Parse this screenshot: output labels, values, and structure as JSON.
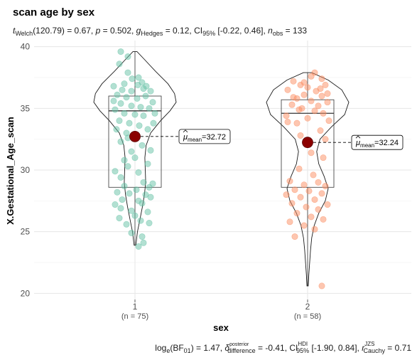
{
  "chart_data": {
    "type": "violin-box-scatter",
    "title": "scan age by sex",
    "subtitle": {
      "stat_symbol": "t",
      "stat_sub": "Welch",
      "stat_value": "(120.79) = 0.67, ",
      "p_label": "p",
      "p_value": " = 0.502, ",
      "es_symbol": "g",
      "es_sub": "Hedges",
      "es_value": " = 0.12, CI",
      "ci_sub": "95%",
      "ci_value": " [-0.22, 0.46], ",
      "n_symbol": "n",
      "n_sub": "obs",
      "n_value": " = 133"
    },
    "caption": {
      "log_text": "log",
      "log_sub": "e",
      "bf_text": "(BF",
      "bf_sub": "01",
      "bf_value": ") = 1.47, ",
      "delta_symbol": "δ",
      "delta_sup": "posterior",
      "delta_sub": "difference",
      "delta_value": " = -0.41, CI",
      "hdi_sup": "HDI",
      "hdi_sub": "95%",
      "hdi_value": " [-1.90, 0.84], ",
      "r_symbol": "r",
      "r_sup": "JZS",
      "r_sub": "Cauchy",
      "r_value": " = 0.71"
    },
    "xlabel": "sex",
    "ylabel": "X.Gestational_Age_scan",
    "ylim": [
      19.5,
      40.5
    ],
    "yticks": [
      20,
      25,
      30,
      35,
      40
    ],
    "grid": true,
    "groups": [
      {
        "category": "1",
        "n_label": "(n = 75)",
        "color": "#66c2a5",
        "mean": 32.72,
        "mean_label_mu": "μ",
        "mean_label_sub": "mean",
        "mean_label_value": "=32.72",
        "box": {
          "q1": 28.6,
          "median": 34.8,
          "q3": 36.0,
          "whisker_low": 23.9,
          "whisker_high": 39.6
        },
        "violin": [
          [
            23.9,
            0.02
          ],
          [
            25.0,
            0.06
          ],
          [
            26.0,
            0.12
          ],
          [
            27.0,
            0.18
          ],
          [
            28.0,
            0.23
          ],
          [
            29.0,
            0.26
          ],
          [
            30.0,
            0.25
          ],
          [
            31.0,
            0.24
          ],
          [
            32.0,
            0.27
          ],
          [
            33.0,
            0.38
          ],
          [
            34.0,
            0.62
          ],
          [
            34.8,
            0.85
          ],
          [
            35.5,
            1.0
          ],
          [
            36.2,
            0.96
          ],
          [
            37.0,
            0.8
          ],
          [
            38.0,
            0.5
          ],
          [
            39.0,
            0.22
          ],
          [
            39.6,
            0.05
          ]
        ],
        "points": [
          [
            -0.2,
            39.6
          ],
          [
            -0.1,
            39.2
          ],
          [
            -0.22,
            38.6
          ],
          [
            -0.1,
            37.9
          ],
          [
            0.05,
            37.5
          ],
          [
            -0.15,
            37.0
          ],
          [
            0.1,
            37.1
          ],
          [
            -0.3,
            36.8
          ],
          [
            -0.18,
            36.5
          ],
          [
            -0.05,
            36.4
          ],
          [
            0.12,
            36.6
          ],
          [
            0.22,
            36.4
          ],
          [
            -0.25,
            36.1
          ],
          [
            -0.12,
            35.9
          ],
          [
            0.03,
            35.8
          ],
          [
            0.15,
            36.0
          ],
          [
            0.25,
            35.5
          ],
          [
            -0.2,
            35.4
          ],
          [
            -0.05,
            35.2
          ],
          [
            0.08,
            35.1
          ],
          [
            0.2,
            35.0
          ],
          [
            -0.28,
            34.9
          ],
          [
            -0.15,
            34.6
          ],
          [
            0.0,
            34.5
          ],
          [
            0.12,
            34.4
          ],
          [
            -0.22,
            34.0
          ],
          [
            -0.08,
            33.8
          ],
          [
            0.06,
            33.6
          ],
          [
            0.18,
            33.3
          ],
          [
            -0.12,
            33.0
          ],
          [
            0.02,
            32.8
          ],
          [
            -0.2,
            32.3
          ],
          [
            0.1,
            32.0
          ],
          [
            -0.05,
            31.5
          ],
          [
            0.0,
            31.0
          ],
          [
            -0.1,
            30.3
          ],
          [
            0.05,
            29.8
          ],
          [
            -0.2,
            29.4
          ],
          [
            0.12,
            29.0
          ],
          [
            -0.15,
            28.7
          ],
          [
            0.2,
            28.6
          ],
          [
            0.25,
            28.9
          ],
          [
            0.02,
            28.4
          ],
          [
            -0.25,
            28.2
          ],
          [
            -0.08,
            28.1
          ],
          [
            0.15,
            28.0
          ],
          [
            0.22,
            27.8
          ],
          [
            -0.18,
            27.6
          ],
          [
            0.05,
            27.5
          ],
          [
            -0.28,
            27.2
          ],
          [
            0.1,
            27.3
          ],
          [
            -0.2,
            26.9
          ],
          [
            -0.05,
            26.7
          ],
          [
            0.18,
            26.6
          ],
          [
            0.0,
            26.3
          ],
          [
            -0.22,
            26.1
          ],
          [
            0.08,
            25.9
          ],
          [
            -0.12,
            25.6
          ],
          [
            0.2,
            25.7
          ],
          [
            -0.05,
            24.9
          ],
          [
            0.1,
            24.6
          ],
          [
            0.12,
            24.1
          ],
          [
            0.05,
            23.8
          ],
          [
            -0.15,
            30.8
          ],
          [
            0.22,
            31.6
          ],
          [
            -0.28,
            29.9
          ],
          [
            0.18,
            30.5
          ],
          [
            -0.1,
            32.6
          ],
          [
            0.26,
            33.8
          ],
          [
            -0.26,
            33.3
          ],
          [
            0.04,
            36.9
          ],
          [
            -0.04,
            37.4
          ],
          [
            0.16,
            36.8
          ],
          [
            -0.3,
            35.6
          ],
          [
            0.28,
            34.6
          ]
        ]
      },
      {
        "category": "2",
        "n_label": "(n = 58)",
        "color": "#fc8d62",
        "mean": 32.24,
        "mean_label_mu": "μ",
        "mean_label_sub": "mean",
        "mean_label_value": "=32.24",
        "box": {
          "q1": 28.6,
          "median": 34.6,
          "q3": 35.7,
          "whisker_low": 20.6,
          "whisker_high": 37.9
        },
        "violin": [
          [
            20.6,
            0.015
          ],
          [
            21.5,
            0.03
          ],
          [
            22.5,
            0.05
          ],
          [
            23.5,
            0.07
          ],
          [
            24.5,
            0.1
          ],
          [
            25.5,
            0.16
          ],
          [
            26.5,
            0.27
          ],
          [
            27.5,
            0.43
          ],
          [
            28.5,
            0.5
          ],
          [
            29.5,
            0.4
          ],
          [
            30.5,
            0.27
          ],
          [
            31.5,
            0.22
          ],
          [
            32.5,
            0.3
          ],
          [
            33.5,
            0.58
          ],
          [
            34.5,
            0.9
          ],
          [
            35.5,
            1.0
          ],
          [
            36.5,
            0.83
          ],
          [
            37.3,
            0.5
          ],
          [
            37.9,
            0.1
          ]
        ],
        "points": [
          [
            0.1,
            37.9
          ],
          [
            0.05,
            37.6
          ],
          [
            -0.2,
            37.2
          ],
          [
            0.2,
            37.4
          ],
          [
            -0.1,
            36.9
          ],
          [
            0.0,
            36.7
          ],
          [
            0.25,
            36.9
          ],
          [
            -0.28,
            36.5
          ],
          [
            0.12,
            36.4
          ],
          [
            -0.05,
            36.1
          ],
          [
            0.2,
            36.0
          ],
          [
            -0.15,
            35.8
          ],
          [
            0.05,
            35.6
          ],
          [
            0.28,
            35.5
          ],
          [
            -0.22,
            35.3
          ],
          [
            -0.08,
            35.0
          ],
          [
            0.1,
            34.8
          ],
          [
            0.22,
            34.6
          ],
          [
            -0.3,
            34.4
          ],
          [
            0.0,
            34.2
          ],
          [
            -0.15,
            33.8
          ],
          [
            0.18,
            33.2
          ],
          [
            -0.1,
            32.8
          ],
          [
            0.05,
            31.4
          ],
          [
            0.22,
            31.0
          ],
          [
            -0.12,
            30.1
          ],
          [
            0.08,
            29.6
          ],
          [
            -0.25,
            29.1
          ],
          [
            0.15,
            29.0
          ],
          [
            -0.05,
            28.8
          ],
          [
            0.25,
            28.7
          ],
          [
            -0.18,
            28.4
          ],
          [
            0.02,
            28.3
          ],
          [
            -0.3,
            28.0
          ],
          [
            0.2,
            28.1
          ],
          [
            -0.1,
            27.8
          ],
          [
            0.1,
            27.6
          ],
          [
            -0.22,
            27.3
          ],
          [
            0.28,
            27.2
          ],
          [
            -0.02,
            27.0
          ],
          [
            0.15,
            26.8
          ],
          [
            -0.15,
            26.5
          ],
          [
            0.05,
            26.2
          ],
          [
            0.22,
            26.0
          ],
          [
            -0.25,
            25.8
          ],
          [
            -0.05,
            25.5
          ],
          [
            0.1,
            25.2
          ],
          [
            -0.18,
            24.6
          ],
          [
            0.2,
            20.6
          ],
          [
            -0.28,
            33.9
          ],
          [
            0.28,
            36.2
          ],
          [
            -0.2,
            35.9
          ],
          [
            0.15,
            35.2
          ],
          [
            -0.12,
            34.9
          ],
          [
            0.3,
            34.0
          ],
          [
            -0.05,
            37.1
          ],
          [
            0.18,
            36.6
          ],
          [
            0.25,
            32.5
          ]
        ]
      }
    ]
  }
}
